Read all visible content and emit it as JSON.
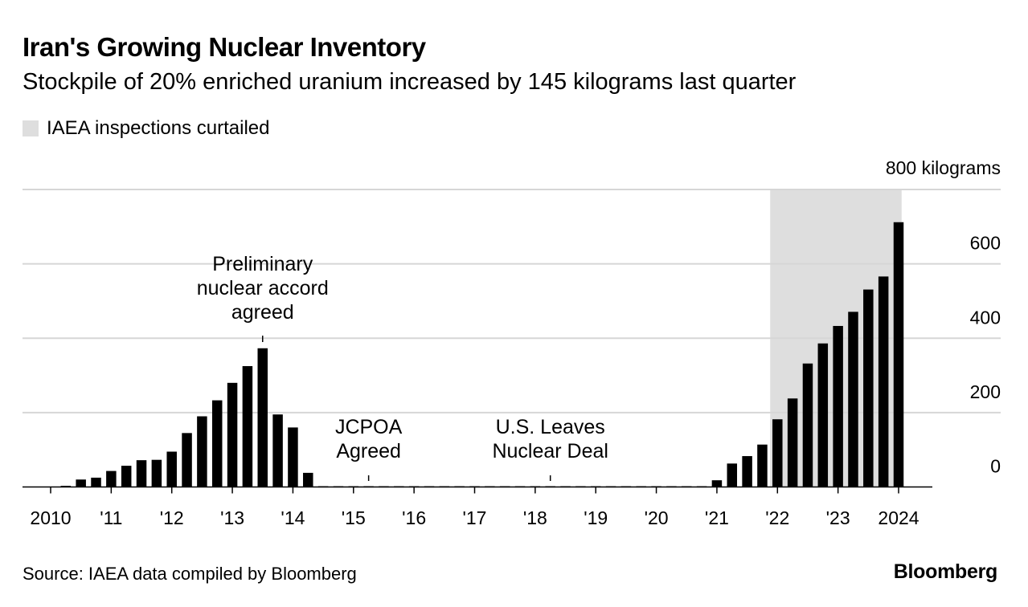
{
  "header": {
    "title": "Iran's Growing Nuclear Inventory",
    "subtitle": "Stockpile of 20% enriched uranium increased by 145 kilograms last quarter"
  },
  "legend": {
    "shaded_label": "IAEA inspections curtailed",
    "shaded_color": "#dedede"
  },
  "footer": {
    "source": "Source: IAEA data compiled by Bloomberg",
    "brand": "Bloomberg"
  },
  "chart_data": {
    "type": "bar",
    "title": "Iran's Growing Nuclear Inventory",
    "subtitle": "Stockpile of 20% enriched uranium increased by 145 kilograms last quarter",
    "ylabel": "kilograms",
    "ylim": [
      0,
      800
    ],
    "yticks": [
      0,
      200,
      400,
      600,
      800
    ],
    "ytick_labels": [
      "0",
      "200",
      "400",
      "600",
      "800 kilograms"
    ],
    "y_axis_side": "right",
    "xlim": [
      2010,
      2025
    ],
    "xticks": [
      2010,
      2011,
      2012,
      2013,
      2014,
      2015,
      2016,
      2017,
      2018,
      2019,
      2020,
      2021,
      2022,
      2023,
      2024
    ],
    "xtick_labels": [
      "2010",
      "'11",
      "'12",
      "'13",
      "'14",
      "'15",
      "'16",
      "'17",
      "'18",
      "'19",
      "'20",
      "'21",
      "'22",
      "'23",
      "2024"
    ],
    "bar_color": "#000000",
    "series": [
      {
        "name": "20% enriched uranium stockpile (kg)",
        "x": [
          2010.25,
          2010.5,
          2010.75,
          2011.0,
          2011.25,
          2011.5,
          2011.75,
          2012.0,
          2012.25,
          2012.5,
          2012.75,
          2013.0,
          2013.25,
          2013.5,
          2013.75,
          2014.0,
          2014.25,
          2014.5,
          2014.75,
          2015.0,
          2015.25,
          2015.5,
          2015.75,
          2016.0,
          2016.25,
          2016.5,
          2016.75,
          2017.0,
          2017.25,
          2017.5,
          2017.75,
          2018.0,
          2018.25,
          2018.5,
          2018.75,
          2019.0,
          2019.25,
          2019.5,
          2019.75,
          2020.0,
          2020.25,
          2020.5,
          2020.75,
          2021.0,
          2021.25,
          2021.5,
          2021.75,
          2022.0,
          2022.25,
          2022.5,
          2022.75,
          2023.0,
          2023.25,
          2023.5,
          2023.75,
          2024.0
        ],
        "values": [
          3,
          20,
          25,
          43,
          57,
          72,
          73,
          95,
          145,
          190,
          233,
          280,
          325,
          373,
          195,
          160,
          38,
          2,
          2,
          2,
          2,
          2,
          2,
          2,
          2,
          2,
          2,
          2,
          2,
          2,
          2,
          2,
          2,
          2,
          2,
          2,
          2,
          2,
          2,
          2,
          2,
          2,
          2,
          18,
          63,
          83,
          114,
          182,
          238,
          332,
          386,
          433,
          471,
          531,
          566,
          712
        ]
      }
    ],
    "shaded_regions": [
      {
        "label": "IAEA inspections curtailed",
        "x_start": 2021.88,
        "x_end": 2024.05
      }
    ],
    "annotations": [
      {
        "text": "Preliminary nuclear accord agreed",
        "lines": [
          "Preliminary",
          "nuclear accord",
          "agreed"
        ],
        "x": 2013.5
      },
      {
        "text": "JCPOA Agreed",
        "lines": [
          "JCPOA",
          "Agreed"
        ],
        "x": 2015.25
      },
      {
        "text": "U.S. Leaves Nuclear Deal",
        "lines": [
          "U.S. Leaves",
          "Nuclear Deal"
        ],
        "x": 2018.25
      }
    ]
  }
}
